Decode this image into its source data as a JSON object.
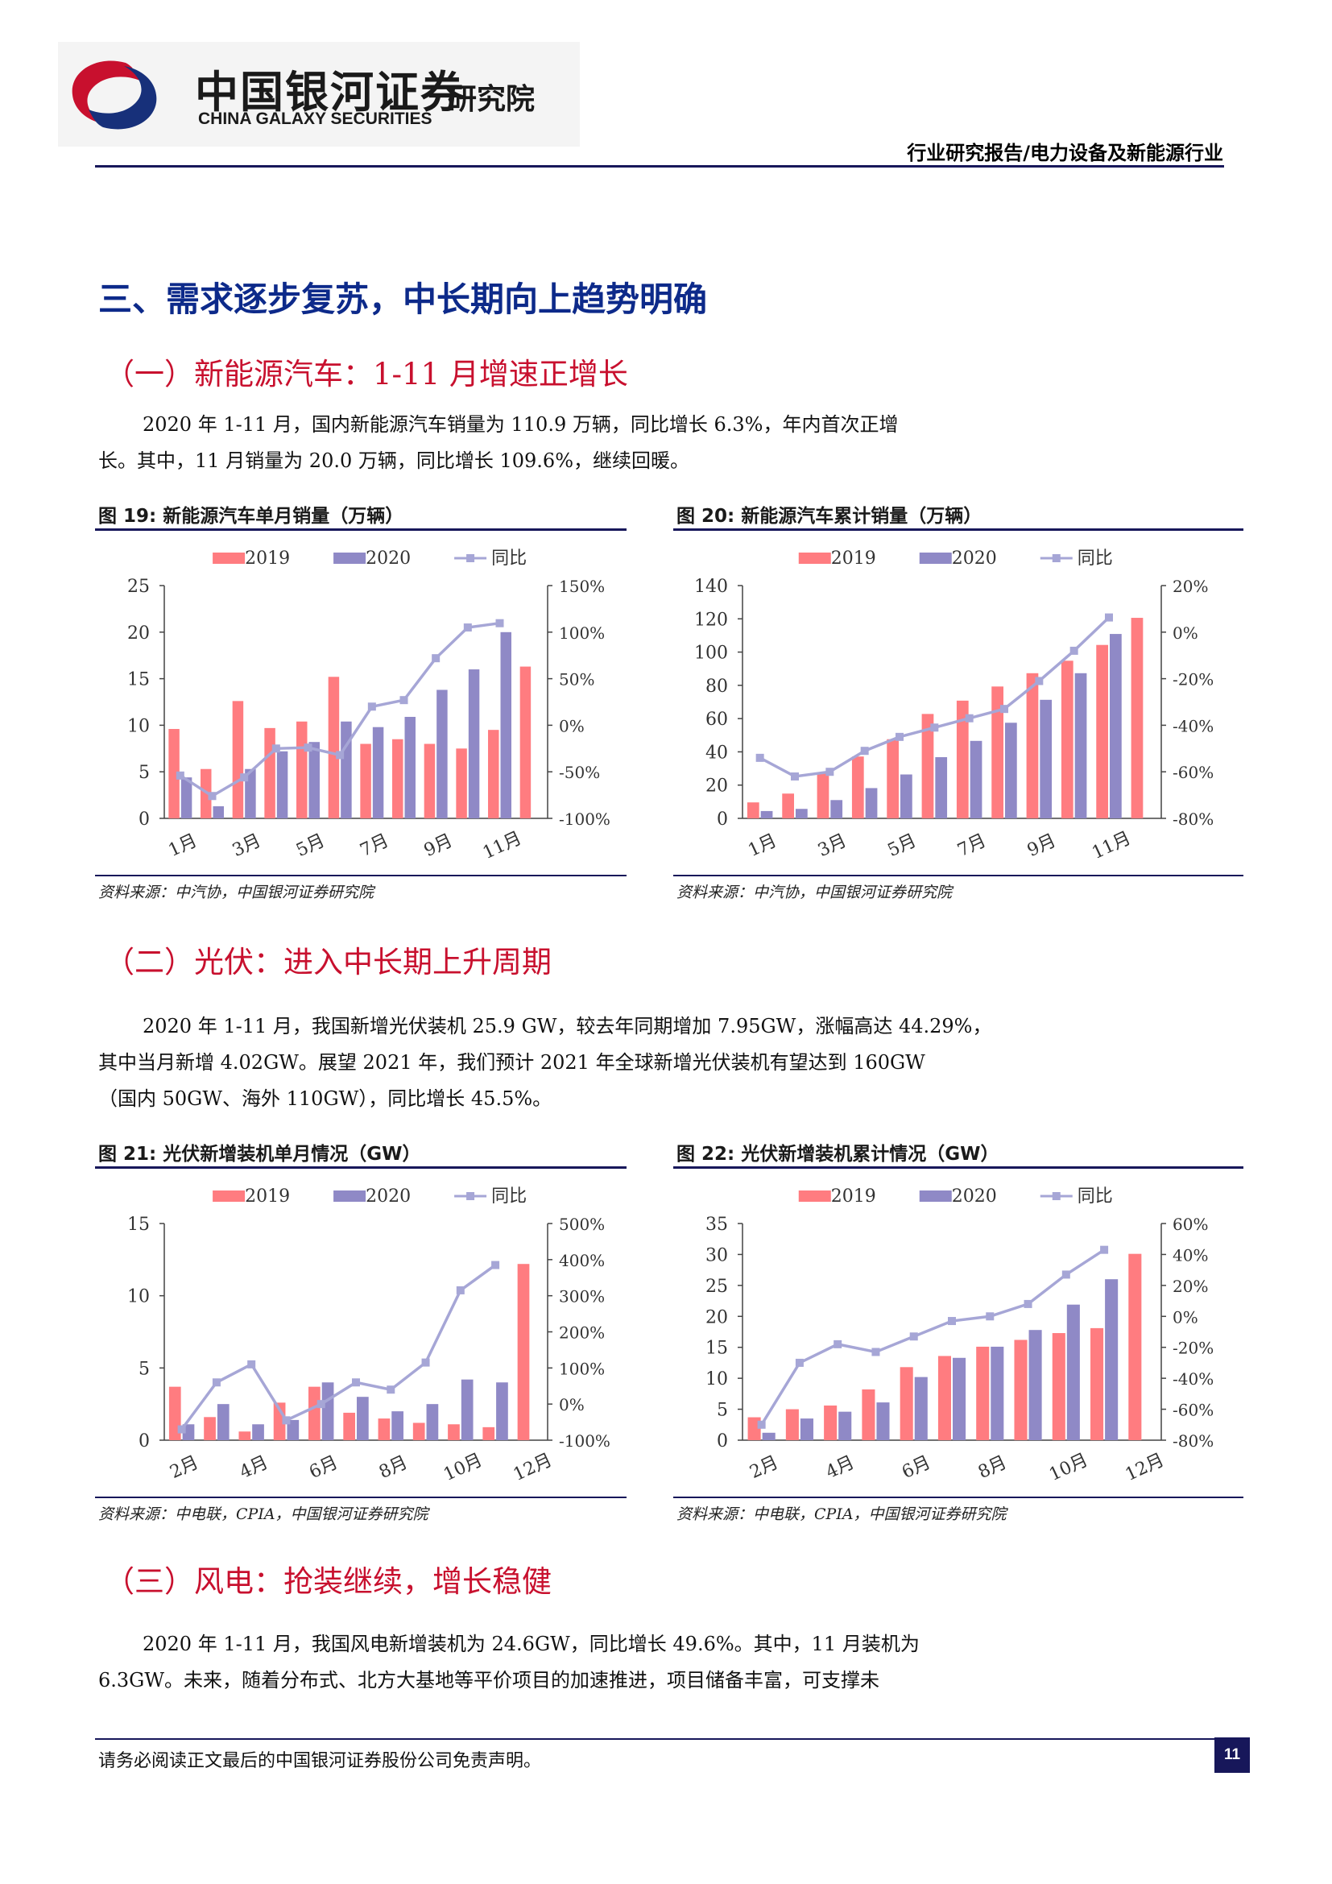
{
  "header": {
    "logo_cn": "中国银河证券",
    "logo_en": "CHINA GALAXY SECURITIES",
    "logo_inst": "研究院",
    "report_type": "行业研究报告/电力设备及新能源行业"
  },
  "colors": {
    "series_2019": "#ff7c80",
    "series_2020": "#8f89c6",
    "yoy": "#a6a6d6",
    "rule": "#17175a",
    "title": "#0d2a8a",
    "subtitle": "#c8102e"
  },
  "section3": {
    "title": "三、需求逐步复苏，中长期向上趋势明确"
  },
  "sub1": {
    "title": "（一）新能源汽车：1-11 月增速正增长",
    "para": [
      "2020 年 1-11 月，国内新能源汽车销量为 110.9 万辆，同比增长 6.3%，年内首次正增",
      "长。其中，11 月销量为 20.0 万辆，同比增长 109.6%，继续回暖。"
    ]
  },
  "sub2": {
    "title": "（二）光伏：进入中长期上升周期",
    "para": [
      "2020 年 1-11 月，我国新增光伏装机 25.9 GW，较去年同期增加 7.95GW，涨幅高达 44.29%，",
      "其中当月新增 4.02GW。展望 2021 年，我们预计 2021 年全球新增光伏装机有望达到 160GW",
      "（国内 50GW、海外 110GW），同比增长 45.5%。"
    ]
  },
  "sub3": {
    "title": "（三）风电：抢装继续，增长稳健",
    "para": [
      "2020 年 1-11 月，我国风电新增装机为 24.6GW，同比增长 49.6%。其中，11 月装机为",
      "6.3GW。未来，随着分布式、北方大基地等平价项目的加速推进，项目储备丰富，可支撑未"
    ]
  },
  "footer": {
    "disclaimer": "请务必阅读正文最后的中国银河证券股份公司免责声明。",
    "page": "11"
  },
  "chart_data": [
    {
      "type": "bar",
      "title": "图 19: 新能源汽车单月销量（万辆）",
      "source": "资料来源：中汽协，中国银河证券研究院",
      "categories": [
        "1月",
        "2月",
        "3月",
        "4月",
        "5月",
        "6月",
        "7月",
        "8月",
        "9月",
        "10月",
        "11月",
        "12月"
      ],
      "x_tick_labels": [
        "1月",
        "3月",
        "5月",
        "7月",
        "9月",
        "11月"
      ],
      "series": [
        {
          "name": "2019",
          "values": [
            9.6,
            5.3,
            12.6,
            9.7,
            10.4,
            15.2,
            8.0,
            8.5,
            8.0,
            7.5,
            9.5,
            16.3
          ]
        },
        {
          "name": "2020",
          "values": [
            4.4,
            1.3,
            5.3,
            7.2,
            8.2,
            10.4,
            9.8,
            10.9,
            13.8,
            16.0,
            20.0,
            null
          ]
        },
        {
          "name": "同比",
          "axis": "right",
          "values": [
            -54,
            -76,
            -56,
            -25,
            -24,
            -32,
            20,
            27,
            72,
            105,
            109.6,
            null
          ]
        }
      ],
      "ylim": [
        0,
        25
      ],
      "y_ticks": [
        "0",
        "5",
        "10",
        "15",
        "20",
        "25"
      ],
      "y2lim": [
        -100,
        150
      ],
      "y2_ticks": [
        "-100%",
        "-50%",
        "0%",
        "50%",
        "100%",
        "150%"
      ],
      "legend_placement": "top"
    },
    {
      "type": "bar",
      "title": "图 20: 新能源汽车累计销量（万辆）",
      "source": "资料来源：中汽协，中国银河证券研究院",
      "categories": [
        "1月",
        "2月",
        "3月",
        "4月",
        "5月",
        "6月",
        "7月",
        "8月",
        "9月",
        "10月",
        "11月",
        "12月"
      ],
      "x_tick_labels": [
        "1月",
        "3月",
        "5月",
        "7月",
        "9月",
        "11月"
      ],
      "series": [
        {
          "name": "2019",
          "values": [
            9.6,
            14.9,
            27.5,
            37.2,
            47.6,
            62.8,
            70.8,
            79.3,
            87.3,
            94.8,
            104.3,
            120.6
          ]
        },
        {
          "name": "2020",
          "values": [
            4.4,
            5.7,
            11.0,
            18.2,
            26.4,
            36.8,
            46.6,
            57.5,
            71.3,
            87.3,
            110.9,
            null
          ]
        },
        {
          "name": "同比",
          "axis": "right",
          "values": [
            -54,
            -62,
            -60,
            -51,
            -45,
            -41,
            -37,
            -33,
            -21,
            -8,
            6.3,
            null
          ]
        }
      ],
      "ylim": [
        0,
        140
      ],
      "y_ticks": [
        "0",
        "20",
        "40",
        "60",
        "80",
        "100",
        "120",
        "140"
      ],
      "y2lim": [
        -80,
        20
      ],
      "y2_ticks": [
        "-80%",
        "-60%",
        "-40%",
        "-20%",
        "0%",
        "20%"
      ],
      "legend_placement": "top"
    },
    {
      "type": "bar",
      "title": "图 21: 光伏新增装机单月情况（GW）",
      "source": "资料来源：中电联，CPIA，中国银河证券研究院",
      "categories": [
        "2月",
        "3月",
        "4月",
        "5月",
        "6月",
        "7月",
        "8月",
        "9月",
        "10月",
        "11月",
        "12月"
      ],
      "x_tick_labels": [
        "2月",
        "4月",
        "6月",
        "8月",
        "10月",
        "12月"
      ],
      "series": [
        {
          "name": "2019",
          "values": [
            3.7,
            1.6,
            0.6,
            2.6,
            3.7,
            1.9,
            1.5,
            1.2,
            1.1,
            0.9,
            12.2
          ]
        },
        {
          "name": "2020",
          "values": [
            1.1,
            2.5,
            1.1,
            1.4,
            4.0,
            3.0,
            2.0,
            2.5,
            4.2,
            4.0,
            null
          ]
        },
        {
          "name": "同比",
          "axis": "right",
          "values": [
            -70,
            60,
            110,
            -45,
            0,
            60,
            40,
            115,
            315,
            385,
            null
          ]
        }
      ],
      "ylim": [
        0,
        15
      ],
      "y_ticks": [
        "0",
        "5",
        "10",
        "15"
      ],
      "y2lim": [
        -100,
        500
      ],
      "y2_ticks": [
        "-100%",
        "0%",
        "100%",
        "200%",
        "300%",
        "400%",
        "500%"
      ],
      "legend_placement": "top"
    },
    {
      "type": "bar",
      "title": "图 22: 光伏新增装机累计情况（GW）",
      "source": "资料来源：中电联，CPIA，中国银河证券研究院",
      "categories": [
        "2月",
        "3月",
        "4月",
        "5月",
        "6月",
        "7月",
        "8月",
        "9月",
        "10月",
        "11月",
        "12月"
      ],
      "x_tick_labels": [
        "2月",
        "4月",
        "6月",
        "8月",
        "10月",
        "12月"
      ],
      "series": [
        {
          "name": "2019",
          "values": [
            3.7,
            5.0,
            5.6,
            8.2,
            11.8,
            13.6,
            15.1,
            16.2,
            17.3,
            18.1,
            30.1
          ]
        },
        {
          "name": "2020",
          "values": [
            1.2,
            3.5,
            4.6,
            6.1,
            10.2,
            13.3,
            15.1,
            17.8,
            21.9,
            26.0,
            null
          ]
        },
        {
          "name": "同比",
          "axis": "right",
          "values": [
            -70,
            -30,
            -18,
            -23,
            -13,
            -3,
            0,
            8,
            27,
            43,
            null
          ]
        }
      ],
      "ylim": [
        0,
        35
      ],
      "y_ticks": [
        "0",
        "5",
        "10",
        "15",
        "20",
        "25",
        "30",
        "35"
      ],
      "y2lim": [
        -80,
        60
      ],
      "y2_ticks": [
        "-80%",
        "-60%",
        "-40%",
        "-20%",
        "0%",
        "20%",
        "40%",
        "60%"
      ],
      "legend_placement": "top"
    }
  ]
}
